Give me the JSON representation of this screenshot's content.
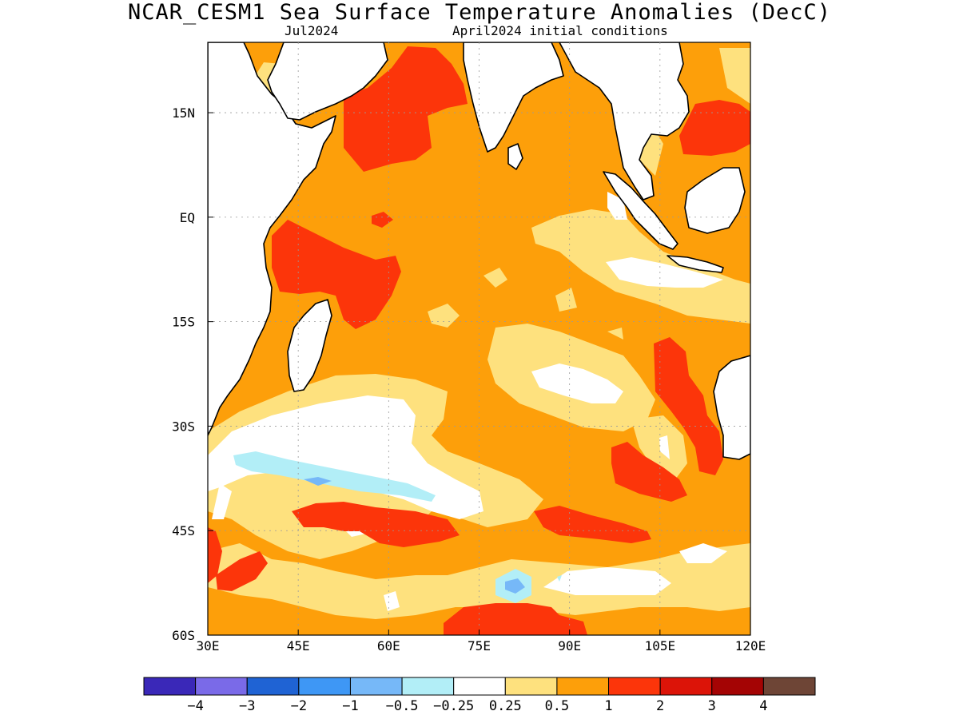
{
  "title": "NCAR_CESM1 Sea Surface Temperature Anomalies (DecC)",
  "subtitle_left": "Jul2024",
  "subtitle_right": "April2024 initial conditions",
  "lon_ticks": [
    "30E",
    "45E",
    "60E",
    "75E",
    "90E",
    "105E",
    "120E"
  ],
  "lat_ticks": [
    "15N",
    "EQ",
    "15S",
    "30S",
    "45S",
    "60S"
  ],
  "colorbar": {
    "colors": [
      "#3a28b8",
      "#7a6ae8",
      "#1f63d4",
      "#3e97f5",
      "#76b8f8",
      "#b2eef7",
      "#ffffff",
      "#fee17e",
      "#fd9f0a",
      "#fc350a",
      "#dc1408",
      "#a40404",
      "#6e4536"
    ],
    "labels": [
      "−4",
      "−3",
      "−2",
      "−1",
      "−0.5",
      "−0.25",
      "0.25",
      "0.5",
      "1",
      "2",
      "3",
      "4"
    ]
  },
  "map_colors": {
    "land": "#ffffff",
    "ocean_base": "#fd9f0a",
    "very_light": "#fee17e",
    "white": "#ffffff",
    "light_cyan": "#b2eef7",
    "light_blue": "#76b8f8",
    "red_orange": "#fc350a",
    "coast": "#000000",
    "grid": "#9a9a9a"
  }
}
